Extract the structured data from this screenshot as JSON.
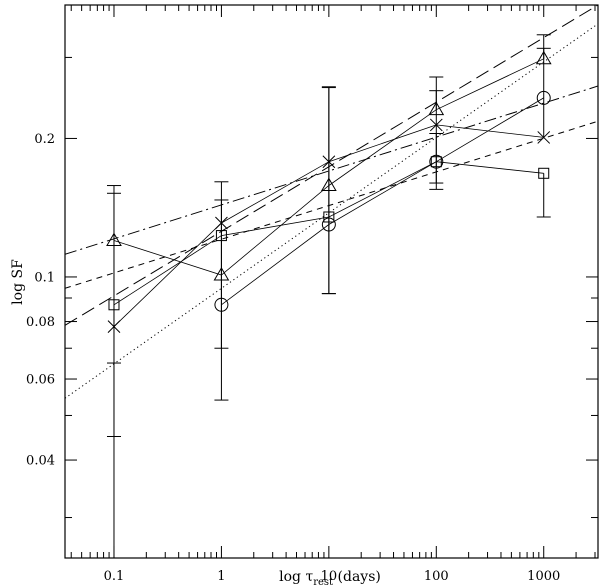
{
  "chart_data": {
    "type": "line",
    "title": "",
    "xlabel": {
      "main": "log τ",
      "subscript": "rest",
      "suffix": " (days)"
    },
    "ylabel": "log SF",
    "x_scale": "log",
    "y_scale": "log",
    "xlim": [
      0.035,
      3200
    ],
    "ylim": [
      0.0245,
      0.39
    ],
    "x_ticks": [
      {
        "value": 0.1,
        "label": "0.1"
      },
      {
        "value": 1,
        "label": "1"
      },
      {
        "value": 10,
        "label": "10"
      },
      {
        "value": 100,
        "label": "100"
      },
      {
        "value": 1000,
        "label": "1000"
      }
    ],
    "y_ticks": [
      {
        "value": 0.04,
        "label": "0.04"
      },
      {
        "value": 0.06,
        "label": "0.06"
      },
      {
        "value": 0.08,
        "label": "0.08"
      },
      {
        "value": 0.1,
        "label": "0.1"
      },
      {
        "value": 0.2,
        "label": "0.2"
      }
    ],
    "grid": false,
    "series": [
      {
        "marker": "square",
        "x": [
          0.1,
          1,
          10,
          100,
          1000
        ],
        "y": [
          0.087,
          0.123,
          0.135,
          0.178,
          0.168
        ],
        "err_low": [
          null,
          null,
          null,
          null,
          0.135
        ],
        "err_high": [
          null,
          null,
          null,
          null,
          null
        ]
      },
      {
        "marker": "circle",
        "x": [
          1,
          10,
          100,
          1000
        ],
        "y": [
          0.087,
          0.13,
          0.178,
          0.245
        ],
        "err_low": [
          0.054,
          0.092,
          0.155,
          null
        ],
        "err_high": [
          0.147,
          0.258,
          0.205,
          null
        ]
      },
      {
        "marker": "triangle",
        "x": [
          0.1,
          1,
          10,
          100,
          1000
        ],
        "y": [
          0.12,
          0.101,
          0.158,
          0.231,
          0.298
        ],
        "err_low": [
          null,
          null,
          null,
          null,
          null
        ],
        "err_high": [
          null,
          null,
          null,
          0.272,
          0.336
        ]
      },
      {
        "marker": "x",
        "x": [
          0.1,
          1,
          10,
          100,
          1000
        ],
        "y": [
          0.078,
          0.131,
          0.178,
          0.214,
          0.201
        ],
        "err_low": [
          0.0245,
          0.07,
          0.092,
          0.16,
          null
        ],
        "err_high": [
          0.152,
          0.161,
          0.259,
          0.254,
          0.314
        ]
      },
      {
        "marker": "none",
        "x": [
          0.1
        ],
        "y": [
          0.065
        ],
        "err_low": [
          0.045
        ],
        "err_high": [
          0.158
        ]
      }
    ],
    "fit_lines": [
      {
        "style": "dotted",
        "x": [
          0.035,
          3200
        ],
        "y": [
          0.0545,
          0.355
        ]
      },
      {
        "style": "long-dash",
        "x": [
          0.035,
          3200
        ],
        "y": [
          0.0785,
          0.39
        ]
      },
      {
        "style": "short-dash",
        "x": [
          0.035,
          3200
        ],
        "y": [
          0.0945,
          0.218
        ]
      },
      {
        "style": "dash-dot",
        "x": [
          0.035,
          3200
        ],
        "y": [
          0.112,
          0.26
        ]
      }
    ]
  }
}
